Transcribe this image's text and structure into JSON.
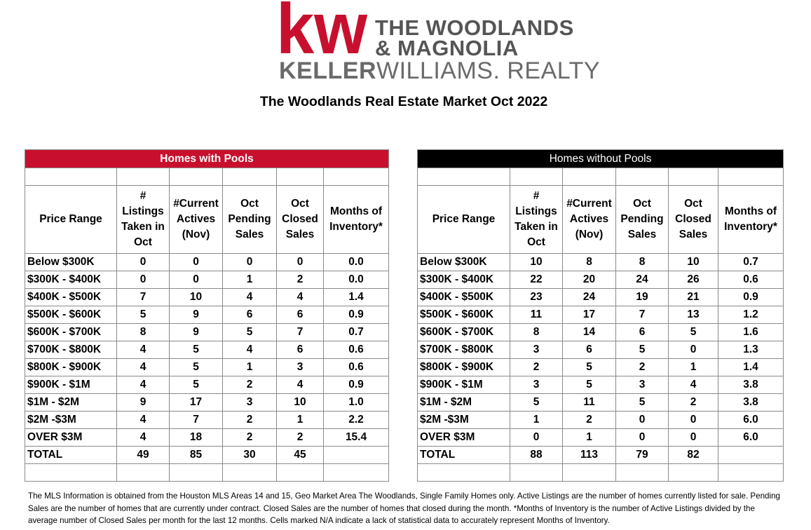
{
  "logo": {
    "mark": "kw",
    "line1": "THE WOODLANDS",
    "line2": "& MAGNOLIA",
    "brand_bold": "KELLER",
    "brand_light": "WILLIAMS. REALTY",
    "colors": {
      "mark": "#c8102e",
      "text": "#555555"
    }
  },
  "title": "The Woodlands Real Estate Market Oct 2022",
  "columns": {
    "price_range": "Price Range",
    "listings_taken": "# Listings Taken in Oct",
    "current_actives": "#Current Actives (Nov)",
    "pending": "Oct Pending Sales",
    "closed": "Oct Closed Sales",
    "months_inventory": "Months of Inventory*"
  },
  "pools": {
    "heading": "Homes with Pools",
    "accent": "#c8102e",
    "rows": [
      {
        "range": "Below $300K",
        "listings": "0",
        "actives": "0",
        "pending": "0",
        "closed": "0",
        "moi": "0.0"
      },
      {
        "range": "$300K - $400K",
        "listings": "0",
        "actives": "0",
        "pending": "1",
        "closed": "2",
        "moi": "0.0"
      },
      {
        "range": "$400K - $500K",
        "listings": "7",
        "actives": "10",
        "pending": "4",
        "closed": "4",
        "moi": "1.4"
      },
      {
        "range": "$500K - $600K",
        "listings": "5",
        "actives": "9",
        "pending": "6",
        "closed": "6",
        "moi": "0.9"
      },
      {
        "range": "$600K - $700K",
        "listings": "8",
        "actives": "9",
        "pending": "5",
        "closed": "7",
        "moi": "0.7"
      },
      {
        "range": "$700K - $800K",
        "listings": "4",
        "actives": "5",
        "pending": "4",
        "closed": "6",
        "moi": "0.6"
      },
      {
        "range": "$800K - $900K",
        "listings": "4",
        "actives": "5",
        "pending": "1",
        "closed": "3",
        "moi": "0.6"
      },
      {
        "range": "$900K - $1M",
        "listings": "4",
        "actives": "5",
        "pending": "2",
        "closed": "4",
        "moi": "0.9"
      },
      {
        "range": "$1M - $2M",
        "listings": "9",
        "actives": "17",
        "pending": "3",
        "closed": "10",
        "moi": "1.0"
      },
      {
        "range": "$2M -$3M",
        "listings": "4",
        "actives": "7",
        "pending": "2",
        "closed": "1",
        "moi": "2.2"
      },
      {
        "range": "OVER $3M",
        "listings": "4",
        "actives": "18",
        "pending": "2",
        "closed": "2",
        "moi": "15.4"
      },
      {
        "range": "TOTAL",
        "listings": "49",
        "actives": "85",
        "pending": "30",
        "closed": "45",
        "moi": ""
      }
    ]
  },
  "nopools": {
    "heading": "Homes without Pools",
    "accent": "#000000",
    "rows": [
      {
        "range": "Below $300K",
        "listings": "10",
        "actives": "8",
        "pending": "8",
        "closed": "10",
        "moi": "0.7"
      },
      {
        "range": "$300K - $400K",
        "listings": "22",
        "actives": "20",
        "pending": "24",
        "closed": "26",
        "moi": "0.6"
      },
      {
        "range": "$400K - $500K",
        "listings": "23",
        "actives": "24",
        "pending": "19",
        "closed": "21",
        "moi": "0.9"
      },
      {
        "range": "$500K - $600K",
        "listings": "11",
        "actives": "17",
        "pending": "7",
        "closed": "13",
        "moi": "1.2"
      },
      {
        "range": "$600K - $700K",
        "listings": "8",
        "actives": "14",
        "pending": "6",
        "closed": "5",
        "moi": "1.6"
      },
      {
        "range": "$700K - $800K",
        "listings": "3",
        "actives": "6",
        "pending": "5",
        "closed": "0",
        "moi": "1.3"
      },
      {
        "range": "$800K - $900K",
        "listings": "2",
        "actives": "5",
        "pending": "2",
        "closed": "1",
        "moi": "1.4"
      },
      {
        "range": "$900K - $1M",
        "listings": "3",
        "actives": "5",
        "pending": "3",
        "closed": "4",
        "moi": "3.8"
      },
      {
        "range": "$1M - $2M",
        "listings": "5",
        "actives": "11",
        "pending": "5",
        "closed": "2",
        "moi": "3.8"
      },
      {
        "range": "$2M -$3M",
        "listings": "1",
        "actives": "2",
        "pending": "0",
        "closed": "0",
        "moi": "6.0"
      },
      {
        "range": "OVER $3M",
        "listings": "0",
        "actives": "1",
        "pending": "0",
        "closed": "0",
        "moi": "6.0"
      },
      {
        "range": "TOTAL",
        "listings": "88",
        "actives": "113",
        "pending": "79",
        "closed": "82",
        "moi": ""
      }
    ]
  },
  "footnote": "The MLS Information is obtained from the Houston MLS Areas 14 and 15, Geo Market Area  The Woodlands, Single Family Homes only.  Active Listings are the number of homes currently listed for sale. Pending Sales are the number of homes that are currently under contract. Closed Sales are the number of homes that closed during the month.  *Months of Inventory is the number of Active Listings divided by the average number of Closed Sales per month for the last 12 months.  Cells marked N/A indicate a lack of statistical data to accurately represent Months of Inventory."
}
